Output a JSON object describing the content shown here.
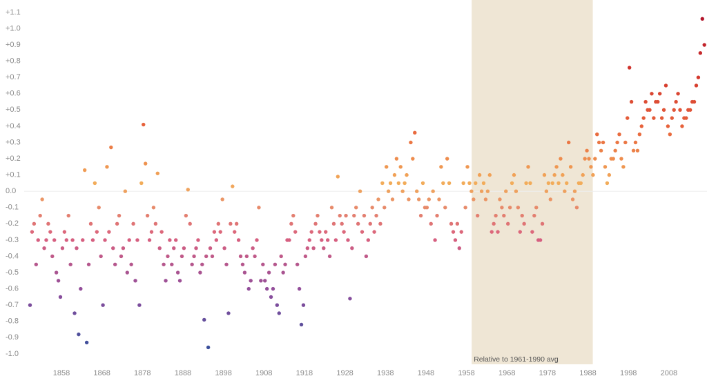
{
  "chart_data": {
    "type": "scatter",
    "annotation": "Relative to 1961-1990 avg",
    "highlight": [
      1959.3,
      1989.2
    ],
    "highlight_color": "#efe6d5",
    "zero_line": true,
    "xlim": [
      1848.8,
      2017.4
    ],
    "ylim": [
      -1.064,
      1.176
    ],
    "xticks": [
      1858,
      1868,
      1878,
      1888,
      1898,
      1908,
      1918,
      1928,
      1938,
      1948,
      1958,
      1968,
      1978,
      1988,
      1998,
      2008
    ],
    "yticks": [
      {
        "value": 1.1,
        "label": "+1.1"
      },
      {
        "value": 1.0,
        "label": "+1.0"
      },
      {
        "value": 0.9,
        "label": "+0.9"
      },
      {
        "value": 0.8,
        "label": "+0.8"
      },
      {
        "value": 0.7,
        "label": "+0.7"
      },
      {
        "value": 0.6,
        "label": "+0.6"
      },
      {
        "value": 0.5,
        "label": "+0.5"
      },
      {
        "value": 0.4,
        "label": "+0.4"
      },
      {
        "value": 0.3,
        "label": "+0.3"
      },
      {
        "value": 0.2,
        "label": "+0.2"
      },
      {
        "value": 0.1,
        "label": "+0.1"
      },
      {
        "value": 0.0,
        "label": "0.0"
      },
      -0.1,
      -0.2,
      -0.3,
      -0.4,
      -0.5,
      -0.6,
      -0.7,
      -0.8,
      -0.9,
      {
        "value": -1.0,
        "label": "-1.0"
      }
    ],
    "colors": [
      "#3b4f9b",
      "#8e4d9c",
      "#d9607f",
      "#f2ac5a",
      "#e8643c",
      "#d2352c",
      "#b3152b"
    ],
    "x": [
      1850.25,
      1850.75,
      1851.25,
      1851.75,
      1852.25,
      1852.75,
      1853.25,
      1853.75,
      1854.25,
      1854.75,
      1855.25,
      1855.75,
      1856.25,
      1856.75,
      1857.25,
      1857.75,
      1858.25,
      1858.75,
      1859.25,
      1859.75,
      1860.25,
      1860.75,
      1861.25,
      1861.75,
      1862.25,
      1862.75,
      1863.25,
      1863.75,
      1864.25,
      1864.75,
      1865.25,
      1865.75,
      1866.25,
      1866.75,
      1867.25,
      1867.75,
      1868.25,
      1868.75,
      1869.25,
      1869.75,
      1870.25,
      1870.75,
      1871.25,
      1871.75,
      1872.25,
      1872.75,
      1873.25,
      1873.75,
      1874.25,
      1874.75,
      1875.25,
      1875.75,
      1876.25,
      1876.75,
      1877.25,
      1877.75,
      1878.25,
      1878.75,
      1879.25,
      1879.75,
      1880.25,
      1880.75,
      1881.25,
      1881.75,
      1882.25,
      1882.75,
      1883.25,
      1883.75,
      1884.25,
      1884.75,
      1885.25,
      1885.75,
      1886.25,
      1886.75,
      1887.25,
      1887.75,
      1888.25,
      1888.75,
      1889.25,
      1889.75,
      1890.25,
      1890.75,
      1891.25,
      1891.75,
      1892.25,
      1892.75,
      1893.25,
      1893.75,
      1894.25,
      1894.75,
      1895.25,
      1895.75,
      1896.25,
      1896.75,
      1897.25,
      1897.75,
      1898.25,
      1898.75,
      1899.25,
      1899.75,
      1900.25,
      1900.75,
      1901.25,
      1901.75,
      1902.25,
      1902.75,
      1903.25,
      1903.75,
      1904.25,
      1904.75,
      1905.25,
      1905.75,
      1906.25,
      1906.75,
      1907.25,
      1907.75,
      1908.25,
      1908.75,
      1909.25,
      1909.75,
      1910.25,
      1910.75,
      1911.25,
      1911.75,
      1912.25,
      1912.75,
      1913.25,
      1913.75,
      1914.25,
      1914.75,
      1915.25,
      1915.75,
      1916.25,
      1916.75,
      1917.25,
      1917.75,
      1918.25,
      1918.75,
      1919.25,
      1919.75,
      1920.25,
      1920.75,
      1921.25,
      1921.75,
      1922.25,
      1922.75,
      1923.25,
      1923.75,
      1924.25,
      1924.75,
      1925.25,
      1925.75,
      1926.25,
      1926.75,
      1927.25,
      1927.75,
      1928.25,
      1928.75,
      1929.25,
      1929.75,
      1930.25,
      1930.75,
      1931.25,
      1931.75,
      1932.25,
      1932.75,
      1933.25,
      1933.75,
      1934.25,
      1934.75,
      1935.25,
      1935.75,
      1936.25,
      1936.75,
      1937.25,
      1937.75,
      1938.25,
      1938.75,
      1939.25,
      1939.75,
      1940.25,
      1940.75,
      1941.25,
      1941.75,
      1942.25,
      1942.75,
      1943.25,
      1943.75,
      1944.25,
      1944.75,
      1945.25,
      1945.75,
      1946.25,
      1946.75,
      1947.25,
      1947.75,
      1948.25,
      1948.75,
      1949.25,
      1949.75,
      1950.25,
      1950.75,
      1951.25,
      1951.75,
      1952.25,
      1952.75,
      1953.25,
      1953.75,
      1954.25,
      1954.75,
      1955.25,
      1955.75,
      1956.25,
      1956.75,
      1957.25,
      1957.75,
      1958.25,
      1958.75,
      1959.25,
      1959.75,
      1960.25,
      1960.75,
      1961.25,
      1961.75,
      1962.25,
      1962.75,
      1963.25,
      1963.75,
      1964.25,
      1964.75,
      1965.25,
      1965.75,
      1966.25,
      1966.75,
      1967.25,
      1967.75,
      1968.25,
      1968.75,
      1969.25,
      1969.75,
      1970.25,
      1970.75,
      1971.25,
      1971.75,
      1972.25,
      1972.75,
      1973.25,
      1973.75,
      1974.25,
      1974.75,
      1975.25,
      1975.75,
      1976.25,
      1976.75,
      1977.25,
      1977.75,
      1978.25,
      1978.75,
      1979.25,
      1979.75,
      1980.25,
      1980.75,
      1981.25,
      1981.75,
      1982.25,
      1982.75,
      1983.25,
      1983.75,
      1984.25,
      1984.75,
      1985.25,
      1985.75,
      1986.25,
      1986.75,
      1987.25,
      1987.75,
      1988.25,
      1988.75,
      1989.25,
      1989.75,
      1990.25,
      1990.75,
      1991.25,
      1991.75,
      1992.25,
      1992.75,
      1993.25,
      1993.75,
      1994.25,
      1994.75,
      1995.25,
      1995.75,
      1996.25,
      1996.75,
      1997.25,
      1997.75,
      1998.25,
      1998.75,
      1999.25,
      1999.75,
      2000.25,
      2000.75,
      2001.25,
      2001.75,
      2002.25,
      2002.75,
      2003.25,
      2003.75,
      2004.25,
      2004.75,
      2005.25,
      2005.75,
      2006.25,
      2006.75,
      2007.25,
      2007.75,
      2008.25,
      2008.75,
      2009.25,
      2009.75,
      2010.25,
      2010.75,
      2011.25,
      2011.75,
      2012.25,
      2012.75,
      2013.25,
      2013.75,
      2014.25,
      2014.75,
      2015.25,
      2015.75,
      2016.25,
      2016.75
    ],
    "values": [
      -0.7,
      -0.25,
      -0.2,
      -0.45,
      -0.3,
      -0.15,
      -0.05,
      -0.35,
      -0.3,
      -0.2,
      -0.25,
      -0.4,
      -0.3,
      -0.5,
      -0.55,
      -0.65,
      -0.35,
      -0.25,
      -0.3,
      -0.15,
      -0.45,
      -0.3,
      -0.75,
      -0.35,
      -0.88,
      -0.6,
      -0.3,
      0.13,
      -0.93,
      -0.45,
      -0.2,
      -0.3,
      0.05,
      -0.25,
      -0.1,
      -0.4,
      -0.7,
      -0.3,
      0.15,
      -0.25,
      0.27,
      -0.35,
      -0.45,
      -0.2,
      -0.15,
      -0.4,
      -0.35,
      0.0,
      -0.5,
      -0.3,
      -0.45,
      -0.2,
      -0.55,
      -0.3,
      -0.7,
      0.05,
      0.41,
      0.17,
      -0.15,
      -0.3,
      -0.25,
      -0.1,
      -0.2,
      0.11,
      -0.35,
      -0.25,
      -0.45,
      -0.55,
      -0.4,
      -0.3,
      -0.45,
      -0.35,
      -0.3,
      -0.5,
      -0.55,
      -0.4,
      -0.35,
      -0.15,
      0.01,
      -0.2,
      -0.45,
      -0.4,
      -0.35,
      -0.3,
      -0.5,
      -0.45,
      -0.79,
      -0.4,
      -0.96,
      -0.35,
      -0.4,
      -0.25,
      -0.3,
      -0.2,
      -0.25,
      -0.05,
      -0.35,
      -0.45,
      -0.75,
      -0.2,
      0.03,
      -0.25,
      -0.2,
      -0.3,
      -0.4,
      -0.45,
      -0.5,
      -0.4,
      -0.6,
      -0.55,
      -0.35,
      -0.4,
      -0.3,
      -0.1,
      -0.55,
      -0.45,
      -0.55,
      -0.6,
      -0.5,
      -0.65,
      -0.6,
      -0.45,
      -0.7,
      -0.75,
      -0.4,
      -0.5,
      -0.45,
      -0.3,
      -0.3,
      -0.2,
      -0.15,
      -0.25,
      -0.45,
      -0.6,
      -0.82,
      -0.7,
      -0.4,
      -0.35,
      -0.3,
      -0.25,
      -0.35,
      -0.2,
      -0.15,
      -0.25,
      -0.3,
      -0.35,
      -0.25,
      -0.3,
      -0.4,
      -0.1,
      -0.2,
      -0.3,
      0.09,
      -0.15,
      -0.2,
      -0.25,
      -0.15,
      -0.3,
      -0.66,
      -0.35,
      -0.15,
      -0.1,
      -0.2,
      0.0,
      -0.25,
      -0.15,
      -0.4,
      -0.3,
      -0.2,
      -0.1,
      -0.25,
      -0.15,
      -0.05,
      -0.2,
      0.05,
      -0.1,
      0.15,
      0.0,
      0.05,
      -0.05,
      0.1,
      0.2,
      0.05,
      0.15,
      0.0,
      0.05,
      0.1,
      -0.05,
      0.3,
      0.2,
      0.36,
      0.0,
      -0.05,
      -0.15,
      0.05,
      -0.1,
      -0.1,
      -0.05,
      -0.2,
      0.0,
      -0.3,
      -0.15,
      -0.05,
      0.15,
      0.05,
      -0.1,
      0.2,
      0.05,
      -0.2,
      -0.25,
      -0.3,
      -0.2,
      -0.35,
      -0.25,
      0.05,
      -0.1,
      0.15,
      0.05,
      0.0,
      -0.05,
      0.05,
      -0.15,
      0.1,
      0.0,
      0.05,
      -0.05,
      0.0,
      0.1,
      -0.25,
      -0.2,
      -0.15,
      -0.25,
      -0.05,
      -0.1,
      -0.15,
      0.0,
      -0.2,
      -0.1,
      0.05,
      0.1,
      0.0,
      -0.1,
      -0.25,
      -0.15,
      -0.2,
      0.05,
      0.15,
      0.05,
      -0.25,
      -0.15,
      -0.1,
      -0.3,
      -0.3,
      -0.2,
      0.1,
      0.0,
      0.05,
      -0.05,
      0.05,
      0.1,
      0.15,
      0.05,
      0.2,
      0.1,
      0.0,
      0.05,
      0.3,
      0.15,
      -0.05,
      0.0,
      -0.1,
      0.05,
      0.05,
      0.1,
      0.2,
      0.25,
      0.2,
      0.15,
      0.1,
      0.2,
      0.35,
      0.3,
      0.25,
      0.3,
      0.15,
      0.05,
      0.1,
      0.2,
      0.2,
      0.25,
      0.3,
      0.35,
      0.2,
      0.15,
      0.3,
      0.45,
      0.76,
      0.55,
      0.25,
      0.3,
      0.25,
      0.35,
      0.4,
      0.45,
      0.55,
      0.5,
      0.5,
      0.6,
      0.45,
      0.55,
      0.55,
      0.6,
      0.45,
      0.5,
      0.65,
      0.4,
      0.35,
      0.45,
      0.5,
      0.55,
      0.6,
      0.5,
      0.4,
      0.45,
      0.45,
      0.5,
      0.5,
      0.55,
      0.55,
      0.65,
      0.7,
      0.85,
      1.06,
      0.9
    ]
  }
}
